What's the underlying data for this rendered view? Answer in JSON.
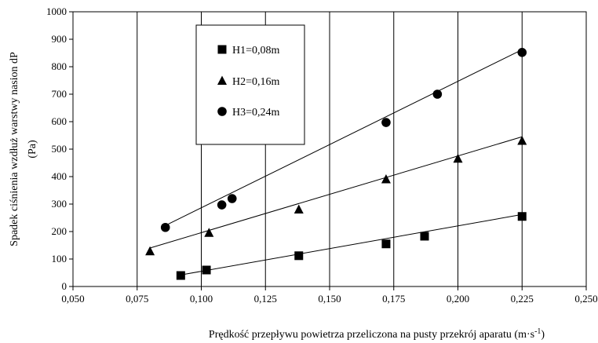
{
  "chart_data": {
    "type": "scatter",
    "title": "",
    "xlabel": "Prędkość przepływu powietrza przeliczona na pusty przekrój aparatu (m·s",
    "xlabel_sup": "-1",
    "xlabel_end": ")",
    "ylabel_line1": "Spadek ciśnienia wzdłuż warstwy nasion dP",
    "ylabel_line2": "(Pa)",
    "xlim": [
      0.05,
      0.25
    ],
    "ylim": [
      0,
      1000
    ],
    "xticks": [
      "0,050",
      "0,075",
      "0,100",
      "0,125",
      "0,150",
      "0,175",
      "0,200",
      "0,225",
      "0,250"
    ],
    "yticks": [
      "0",
      "100",
      "200",
      "300",
      "400",
      "500",
      "600",
      "700",
      "800",
      "900",
      "1000"
    ],
    "grid": "vertical",
    "legend_position": "top-left",
    "series": [
      {
        "name": "H1=0,08m",
        "marker": "square",
        "x": [
          0.092,
          0.102,
          0.138,
          0.172,
          0.187,
          0.225
        ],
        "y": [
          40,
          60,
          112,
          155,
          183,
          255
        ],
        "fit": [
          [
            0.092,
            42
          ],
          [
            0.225,
            262
          ]
        ]
      },
      {
        "name": "H2=0,16m",
        "marker": "triangle",
        "x": [
          0.08,
          0.103,
          0.138,
          0.172,
          0.2,
          0.225
        ],
        "y": [
          128,
          195,
          280,
          390,
          465,
          530
        ],
        "fit": [
          [
            0.08,
            140
          ],
          [
            0.225,
            545
          ]
        ]
      },
      {
        "name": "H3=0,24m",
        "marker": "circle",
        "x": [
          0.086,
          0.108,
          0.112,
          0.172,
          0.192,
          0.225
        ],
        "y": [
          215,
          297,
          320,
          597,
          700,
          852
        ],
        "fit": [
          [
            0.086,
            222
          ],
          [
            0.225,
            862
          ]
        ]
      }
    ]
  }
}
